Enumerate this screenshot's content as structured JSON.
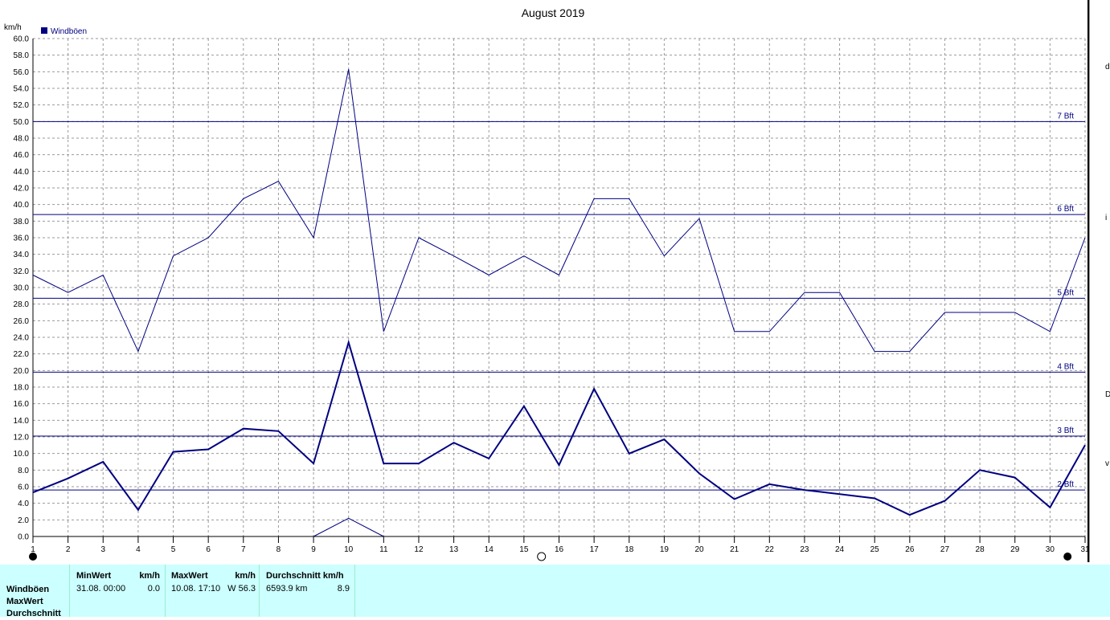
{
  "chart_data": {
    "type": "line",
    "title": "August 2019",
    "ylabel": "km/h",
    "legend": {
      "label": "Windböen",
      "color": "#000080",
      "placement": "top-left"
    },
    "ylim": [
      0,
      60
    ],
    "ytick_step": 2,
    "y_ticks": [
      "60.0",
      "58.0",
      "56.0",
      "54.0",
      "52.0",
      "50.0",
      "48.0",
      "46.0",
      "44.0",
      "42.0",
      "40.0",
      "38.0",
      "36.0",
      "34.0",
      "32.0",
      "30.0",
      "28.0",
      "26.0",
      "24.0",
      "22.0",
      "20.0",
      "18.0",
      "16.0",
      "14.0",
      "12.0",
      "10.0",
      "8.0",
      "6.0",
      "4.0",
      "2.0",
      "0.0"
    ],
    "x": [
      1,
      2,
      3,
      4,
      5,
      6,
      7,
      8,
      9,
      10,
      11,
      12,
      13,
      14,
      15,
      16,
      17,
      18,
      19,
      20,
      21,
      22,
      23,
      24,
      25,
      26,
      27,
      28,
      29,
      30,
      31
    ],
    "x_labels": [
      "1",
      "2",
      "3",
      "4",
      "5",
      "6",
      "7",
      "8",
      "9",
      "10",
      "11",
      "12",
      "13",
      "14",
      "15",
      "16",
      "17",
      "18",
      "19",
      "20",
      "21",
      "22",
      "23",
      "24",
      "25",
      "26",
      "27",
      "28",
      "29",
      "30",
      "31"
    ],
    "grid": true,
    "series": [
      {
        "role": "max",
        "color": "#000080",
        "values": [
          31.5,
          29.4,
          31.5,
          22.3,
          33.8,
          36.0,
          40.7,
          42.8,
          36.0,
          56.3,
          24.7,
          36.0,
          33.8,
          31.5,
          33.8,
          31.5,
          40.7,
          40.7,
          33.8,
          38.3,
          24.7,
          24.7,
          29.4,
          29.4,
          22.3,
          22.3,
          27.0,
          27.0,
          27.0,
          24.7,
          36.0
        ]
      },
      {
        "role": "average",
        "color": "#000080",
        "values": [
          5.3,
          7.0,
          9.0,
          3.2,
          10.2,
          10.5,
          13.0,
          12.7,
          8.8,
          23.4,
          8.8,
          8.8,
          11.3,
          9.4,
          15.7,
          8.6,
          17.8,
          10.0,
          11.7,
          7.6,
          4.5,
          6.3,
          5.6,
          5.1,
          4.6,
          2.6,
          4.3,
          8.0,
          7.1,
          3.5,
          11.0
        ]
      },
      {
        "role": "min",
        "color": "#000080",
        "x": [
          9,
          10,
          11
        ],
        "values": [
          0.0,
          2.2,
          0.0
        ]
      }
    ],
    "reference_lines": [
      {
        "label": "2 Bft",
        "value": 5.6
      },
      {
        "label": "3 Bft",
        "value": 12.1
      },
      {
        "label": "4 Bft",
        "value": 19.8
      },
      {
        "label": "5 Bft",
        "value": 28.7
      },
      {
        "label": "6 Bft",
        "value": 38.8
      },
      {
        "label": "7 Bft",
        "value": 50.0
      }
    ],
    "moon_phases": [
      {
        "day": 1,
        "phase": "new-moon"
      },
      {
        "day": 15.5,
        "phase": "full-moon"
      },
      {
        "day": 30.5,
        "phase": "new-moon"
      }
    ]
  },
  "stats": {
    "row_labels": [
      "Windböen",
      "MaxWert",
      "Durchschnitt"
    ],
    "min": {
      "header": "MinWert",
      "unit": "km/h",
      "time": "31.08.  00:00",
      "value": "0.0"
    },
    "max": {
      "header": "MaxWert",
      "unit": "km/h",
      "time": "10.08.  17:10",
      "value": "W 56.3"
    },
    "avg": {
      "header": "Durchschnitt km/h",
      "distance": "6593.9 km",
      "value": "8.9"
    }
  },
  "right_panel": {
    "fragments": [
      "d",
      "i",
      "D",
      "v"
    ]
  }
}
